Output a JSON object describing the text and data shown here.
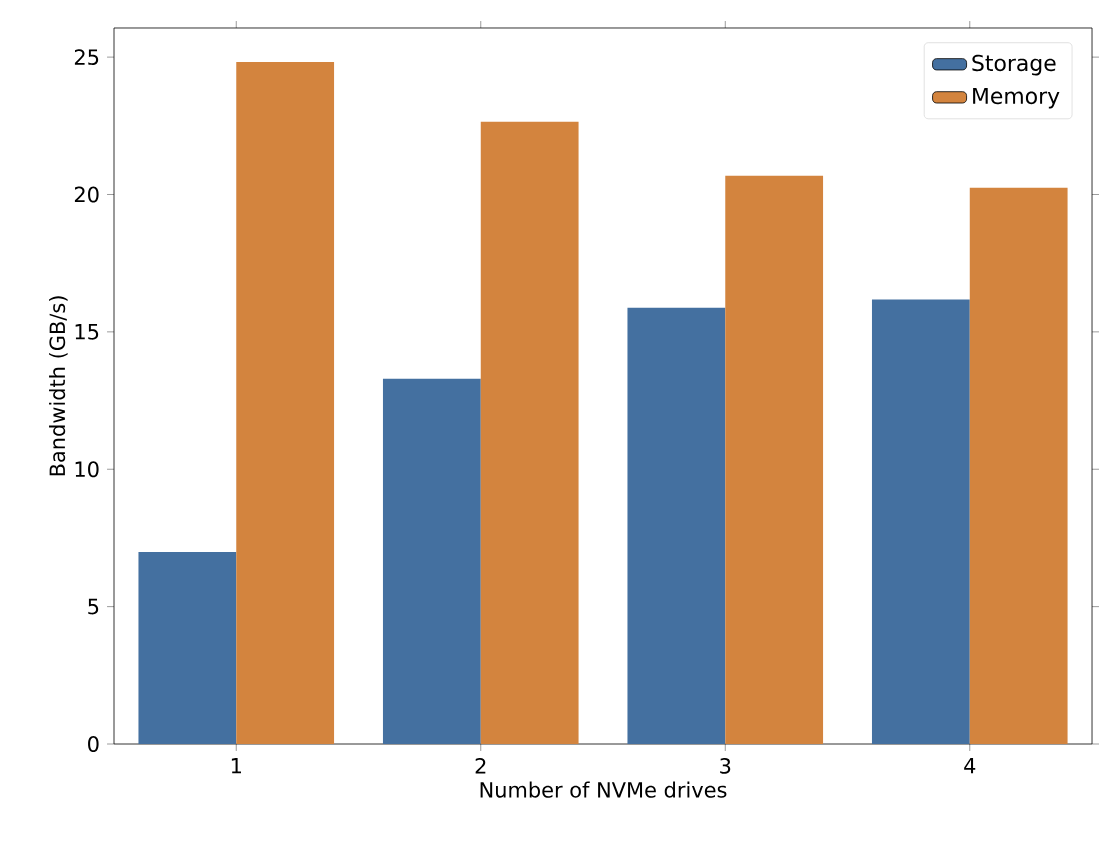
{
  "chart_data": {
    "type": "bar",
    "xlabel": "Number of NVMe drives",
    "ylabel": "Bandwidth (GB/s)",
    "categories": [
      "1",
      "2",
      "3",
      "4"
    ],
    "series": [
      {
        "name": "Storage",
        "color": "#4470a0",
        "values": [
          6.99,
          13.29,
          15.88,
          16.18
        ]
      },
      {
        "name": "Memory",
        "color": "#d3843e",
        "values": [
          24.82,
          22.65,
          20.68,
          20.25
        ]
      }
    ],
    "ylim": [
      0,
      26.06
    ],
    "yticks": [
      0,
      5,
      10,
      15,
      20,
      25
    ],
    "grid": false,
    "legend": "top right"
  }
}
